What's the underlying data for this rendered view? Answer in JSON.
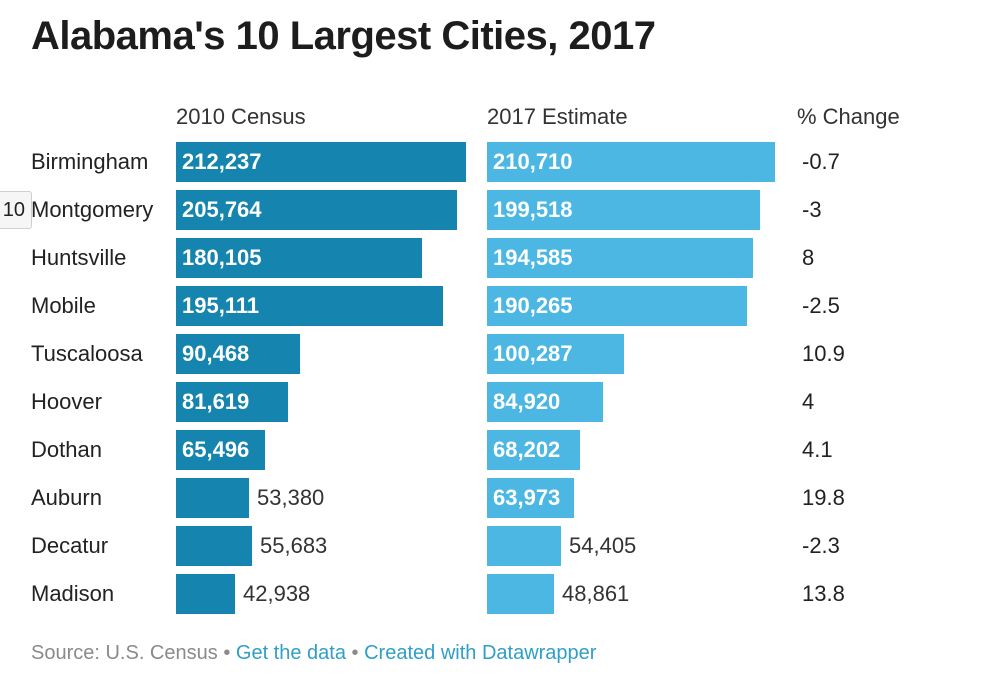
{
  "title": "Alabama's 10 Largest Cities, 2017",
  "side_tab": "10",
  "columns": {
    "census2010": "2010 Census",
    "estimate2017": "2017 Estimate",
    "change": "% Change"
  },
  "colors": {
    "census2010_bar": "#1584ae",
    "estimate2017_bar": "#4cb7e3",
    "source_text": "#8a8a8a",
    "link": "#2f9fc6"
  },
  "chart_data": {
    "type": "bar",
    "title": "Alabama's 10 Largest Cities, 2017",
    "categories": [
      "Birmingham",
      "Montgomery",
      "Huntsville",
      "Mobile",
      "Tuscaloosa",
      "Hoover",
      "Dothan",
      "Auburn",
      "Decatur",
      "Madison"
    ],
    "series": [
      {
        "name": "2010 Census",
        "values": [
          212237,
          205764,
          180105,
          195111,
          90468,
          81619,
          65496,
          53380,
          55683,
          42938
        ],
        "labels": [
          "212,237",
          "205,764",
          "180,105",
          "195,111",
          "90,468",
          "81,619",
          "65,496",
          "53,380",
          "55,683",
          "42,938"
        ]
      },
      {
        "name": "2017 Estimate",
        "values": [
          210710,
          199518,
          194585,
          190265,
          100287,
          84920,
          68202,
          63973,
          54405,
          48861
        ],
        "labels": [
          "210,710",
          "199,518",
          "194,585",
          "190,265",
          "100,287",
          "84,920",
          "68,202",
          "63,973",
          "54,405",
          "48,861"
        ]
      }
    ],
    "pct_change": [
      "-0.7",
      "-3",
      "8",
      "-2.5",
      "10.9",
      "4",
      "4.1",
      "19.8",
      "-2.3",
      "13.8"
    ]
  },
  "footer": {
    "source": "Source: U.S. Census",
    "separator": "•",
    "get_data": "Get the data",
    "created_with": "Created with Datawrapper"
  }
}
